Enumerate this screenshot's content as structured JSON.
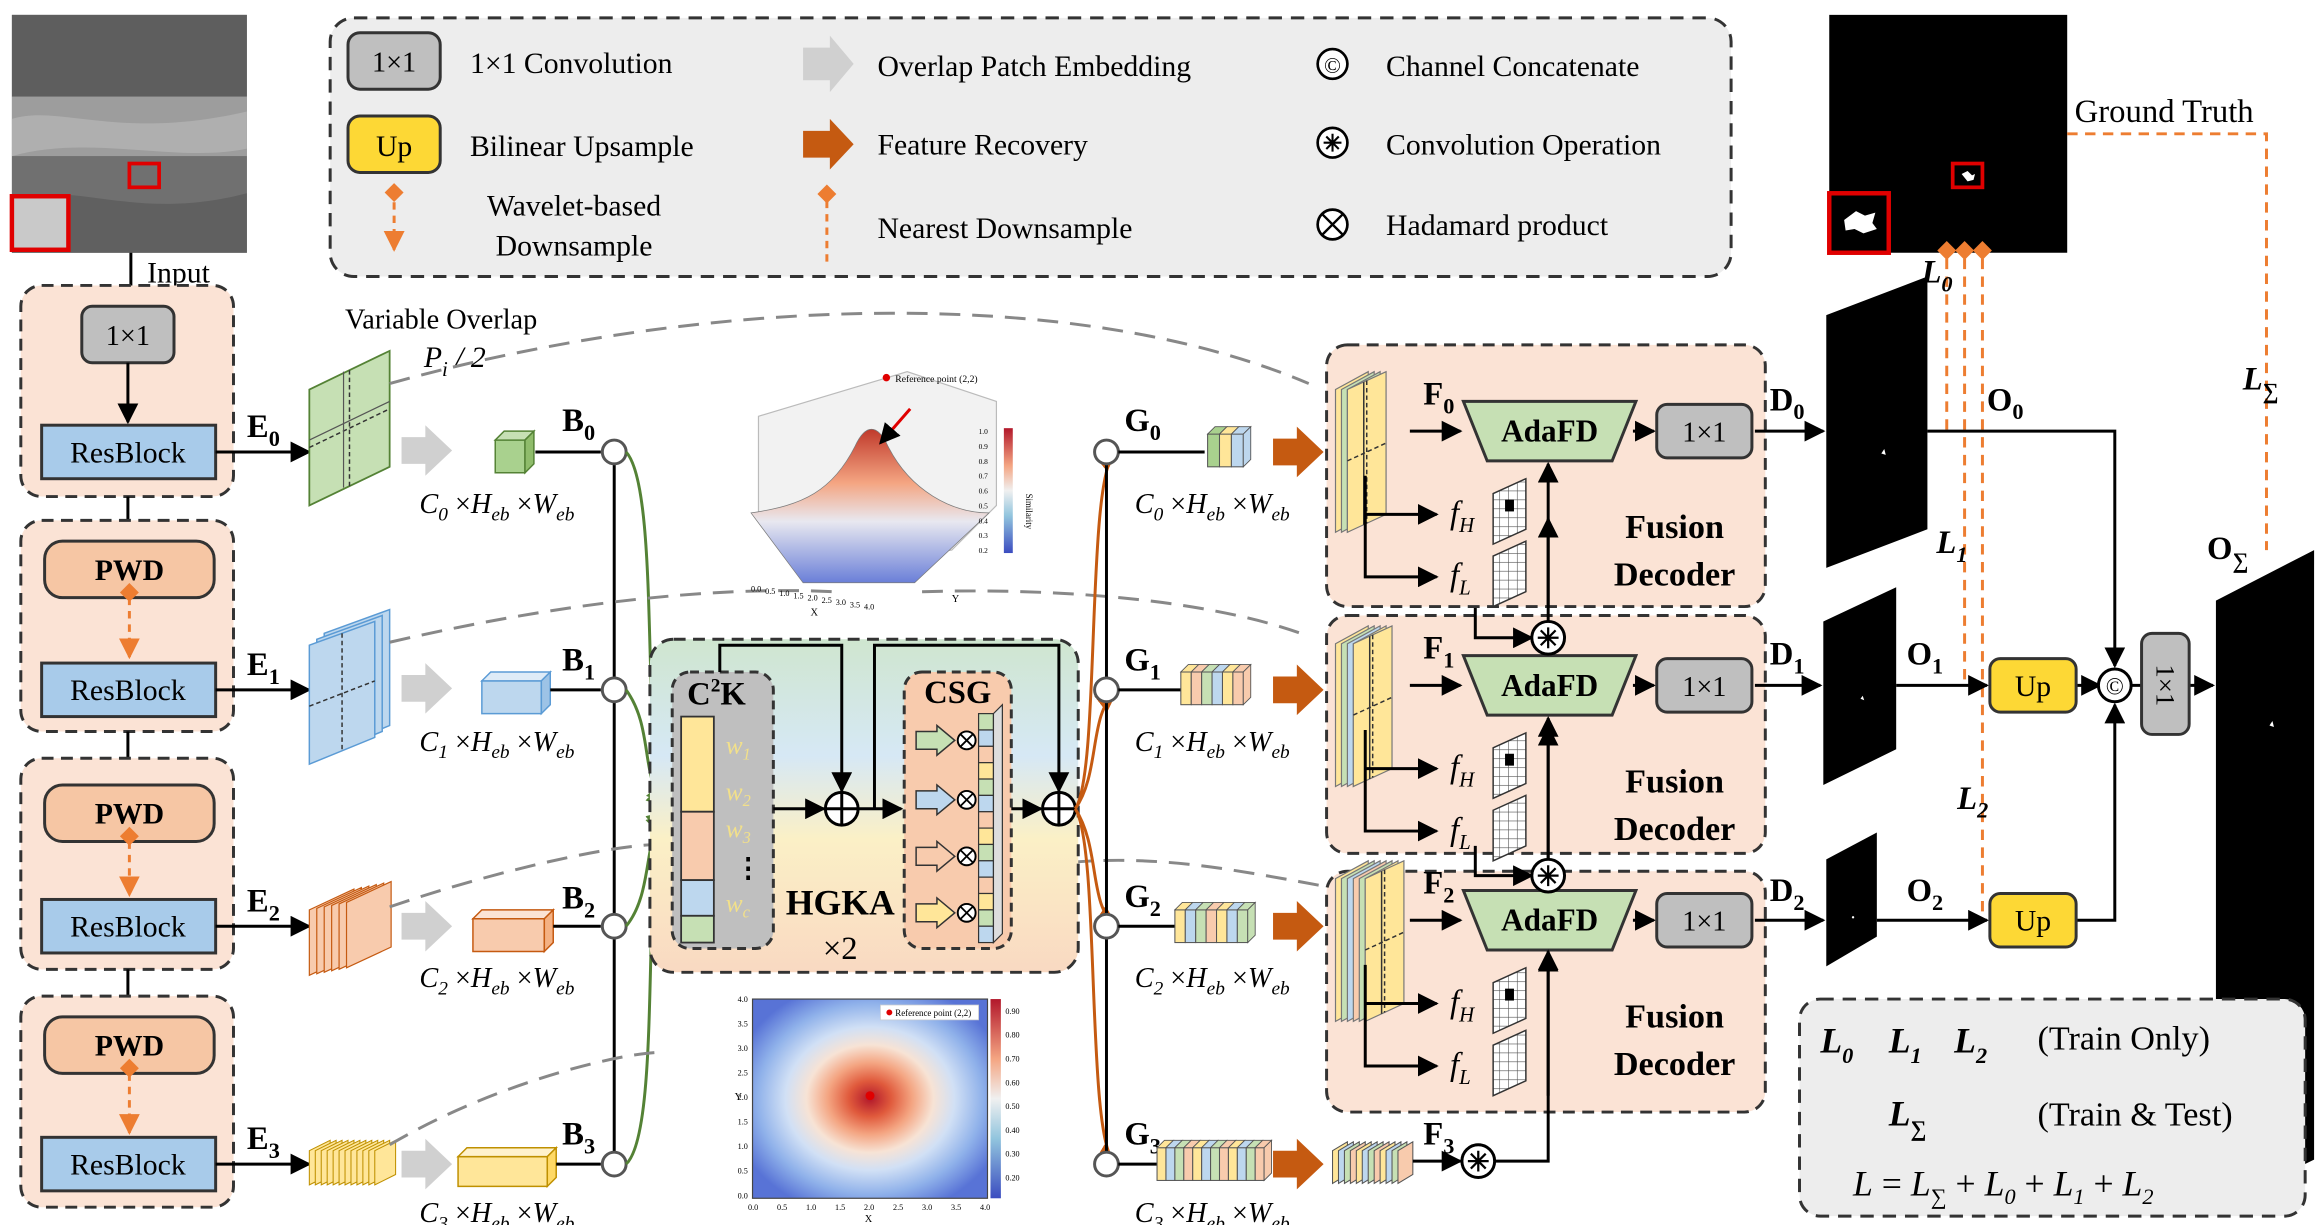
{
  "legend": {
    "conv_box": "1×1",
    "conv_label": "1×1 Convolution",
    "up_box": "Up",
    "up_label": "Bilinear Upsample",
    "wavelet_label_1": "Wavelet-based",
    "wavelet_label_2": "Downsample",
    "overlap_label": "Overlap Patch Embedding",
    "feature_label": "Feature Recovery",
    "nearest_label": "Nearest Downsample",
    "concat_label": "Channel Concatenate",
    "convop_label": "Convolution Operation",
    "hadamard_label": "Hadamard product",
    "concat_symbol": "©",
    "convop_symbol": "⊛",
    "hadamard_symbol": "⊗"
  },
  "encoder": {
    "input_label": "Input",
    "conv_label": "1×1",
    "resblock_label": "ResBlock",
    "pwd_label": "PWD",
    "variable_overlap": "Variable Overlap",
    "pi_main": "P",
    "pi_sub": "i",
    "pi_rest": " / 2",
    "e_main": "E",
    "e_subs": [
      "0",
      "1",
      "2",
      "3"
    ],
    "c_subs": [
      "0",
      "1",
      "2",
      "3"
    ],
    "b_main": "B",
    "b_subs": [
      "0",
      "1",
      "2",
      "3"
    ],
    "dim_c": "C",
    "dim_x1": " ×",
    "dim_h": "H",
    "dim_eb1": "eb",
    "dim_x2": " ×",
    "dim_w": "W",
    "dim_eb2": "eb"
  },
  "hgka": {
    "c2k_main": "C",
    "c2k_sup": "2",
    "c2k_end": "K",
    "csg": "CSG",
    "title": "HGKA",
    "repeat": "×2",
    "w_main": "w",
    "w_subs": [
      "1",
      "2",
      "3",
      "c"
    ],
    "dots": "⋮",
    "oplus": "⊕",
    "otimes": "⊗"
  },
  "plots": {
    "top_legend": "Reference point (2,2)",
    "top_colorbar": "Similarity",
    "top_xlabel": "X",
    "top_ylabel": "Y",
    "top_ticks": [
      "0.0",
      "0.5",
      "1.0",
      "1.5",
      "2.0",
      "2.5",
      "3.0",
      "3.5",
      "4.0"
    ],
    "bottom_legend": "Reference point (2,2)",
    "bottom_xlabel": "X",
    "bottom_ylabel": "Y",
    "bottom_ticks": [
      "0.0",
      "0.5",
      "1.0",
      "1.5",
      "2.0",
      "2.5",
      "3.0",
      "3.5",
      "4.0"
    ],
    "bottom_cbar": [
      "0.90",
      "0.80",
      "0.70",
      "0.60",
      "0.50",
      "0.40",
      "0.30",
      "0.20"
    ],
    "top_cbar": [
      "1.0",
      "0.9",
      "0.8",
      "0.7",
      "0.6",
      "0.5",
      "0.4",
      "0.3",
      "0.2"
    ]
  },
  "decoder": {
    "g_main": "G",
    "g_subs": [
      "0",
      "1",
      "2",
      "3"
    ],
    "f_main": "F",
    "f_subs": [
      "0",
      "1",
      "2",
      "3"
    ],
    "adafd": "AdaFD",
    "conv": "1×1",
    "fusion": "Fusion",
    "decoder": "Decoder",
    "fh_main": "f",
    "fh_sub": "H",
    "fl_main": "f",
    "fl_sub": "L",
    "d_main": "D",
    "d_subs": [
      "0",
      "1",
      "2"
    ],
    "convop": "⊛"
  },
  "output": {
    "ground_truth": "Ground Truth",
    "l_main": "L",
    "l_subs": [
      "0",
      "1",
      "2"
    ],
    "l_sigma": "∑",
    "o_main": "O",
    "o_subs": [
      "0",
      "1",
      "2"
    ],
    "o_sigma": "∑",
    "up": "Up",
    "concat": "©",
    "conv_vert": "1×1"
  },
  "loss_box": {
    "train_only": "(Train Only)",
    "train_test": "(Train & Test)",
    "eq_l": "L",
    "eq_equals": " = ",
    "eq_plus": " + "
  },
  "colors": {
    "peach": "#fbe3d5",
    "resblock": "#a8cbea",
    "pwd": "#f6c6a4",
    "green_box": "#c6e0b4",
    "yellow": "#fdd835",
    "orange_arrow": "#c55a11",
    "dash_orange": "#ed7d31",
    "green_line": "#548235",
    "red": "#e00000"
  }
}
